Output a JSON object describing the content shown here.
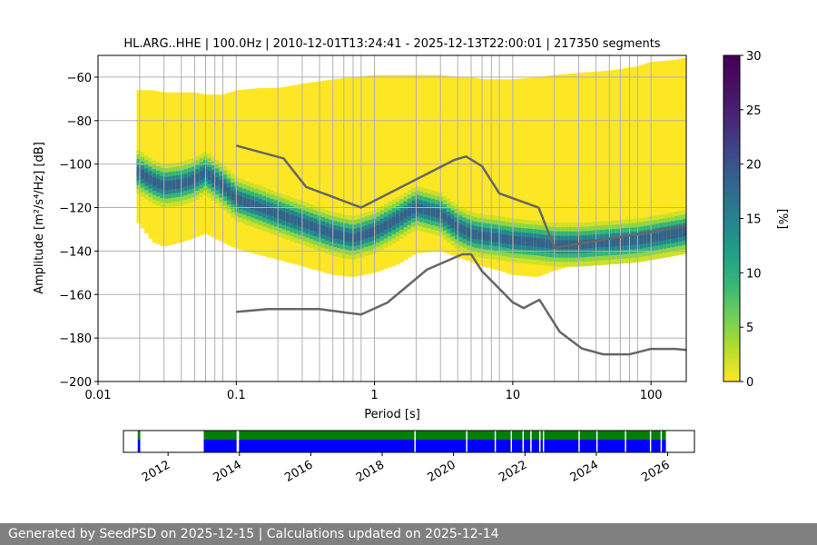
{
  "chart_data": [
    {
      "type": "heatmap",
      "title": "HL.ARG..HHE | 100.0Hz | 2010-12-01T13:24:41 - 2025-12-13T22:00:01 | 217350 segments",
      "xlabel": "Period [s]",
      "ylabel": "Amplitude [m²/s⁴/Hz] [dB]",
      "x_scale": "log",
      "xlim": [
        0.01,
        180
      ],
      "ylim": [
        -200,
        -50
      ],
      "x_tick_labels": [
        "0.01",
        "0.1",
        "1",
        "10",
        "100"
      ],
      "y_tick_labels": [
        "−60",
        "−80",
        "−100",
        "−120",
        "−140",
        "−160",
        "−180",
        "−200"
      ],
      "y_ticks": [
        -60,
        -80,
        -100,
        -120,
        -140,
        -160,
        -180,
        -200
      ],
      "grid": true,
      "colormap": "viridis_r",
      "colorbar": {
        "label": "[%]",
        "range": [
          0,
          30
        ],
        "ticks": [
          "0",
          "5",
          "10",
          "15",
          "20",
          "25",
          "30"
        ]
      },
      "psd_mode": {
        "period": [
          0.019,
          0.025,
          0.03,
          0.04,
          0.05,
          0.06,
          0.08,
          0.1,
          0.15,
          0.2,
          0.3,
          0.5,
          0.7,
          1.0,
          1.5,
          2.0,
          3.0,
          4.0,
          5.0,
          6.0,
          8.0,
          10,
          15,
          20,
          30,
          50,
          80,
          100,
          150,
          180
        ],
        "amplitude": [
          -103,
          -108,
          -110,
          -109,
          -107,
          -104,
          -110,
          -116,
          -120,
          -123,
          -127,
          -132,
          -134,
          -131,
          -125,
          -120,
          -123,
          -129,
          -132,
          -133,
          -134,
          -135,
          -136,
          -137,
          -137,
          -136,
          -135,
          -134,
          -132,
          -131
        ]
      },
      "psd_lower": [
        -126,
        -136,
        -138,
        -136,
        -134,
        -132,
        -136,
        -139,
        -142,
        -144,
        -147,
        -151,
        -152,
        -150,
        -146,
        -141,
        -140,
        -143,
        -145,
        -147,
        -149,
        -151,
        -152,
        -149,
        -146,
        -144,
        -143,
        -142,
        -141,
        -140
      ],
      "psd_upper": [
        -66,
        -66,
        -67,
        -67,
        -67,
        -68,
        -68,
        -66,
        -65,
        -65,
        -63,
        -61,
        -60,
        -59,
        -59,
        -59,
        -59,
        -60,
        -60,
        -61,
        -61,
        -61,
        -60,
        -59,
        -58,
        -57,
        -55,
        -53,
        -52,
        -51
      ],
      "series": [
        {
          "name": "",
          "x": [
            0.1,
            0.22,
            0.32,
            0.8,
            3.8,
            4.6,
            6.0,
            8.0,
            15.4,
            20.0,
            180
          ],
          "y": [
            -91.5,
            -97.4,
            -110.5,
            -120.0,
            -98.0,
            -96.5,
            -101.0,
            -113.5,
            -120.0,
            -138.5,
            -128.5
          ]
        },
        {
          "name": "",
          "x": [
            0.1,
            0.17,
            0.4,
            0.8,
            1.24,
            2.4,
            4.3,
            5.0,
            6.0,
            10.0,
            12.0,
            15.6,
            21.9,
            31.6,
            45.0,
            70.0,
            100,
            150,
            180
          ],
          "y": [
            -168.0,
            -166.7,
            -166.7,
            -169.2,
            -163.7,
            -148.5,
            -141.5,
            -141.5,
            -149.3,
            -163.6,
            -166.2,
            -162.4,
            -177.2,
            -184.8,
            -187.5,
            -187.5,
            -185.0,
            -185.0,
            -185.5
          ]
        }
      ],
      "vertical_lines_period": [
        0.02,
        0.03,
        0.04,
        0.05,
        0.06,
        0.07,
        0.08,
        0.2,
        0.3,
        0.4,
        0.5,
        0.6,
        0.7,
        0.8,
        2,
        3,
        4,
        5,
        6,
        7,
        8,
        20,
        30,
        40,
        50,
        60,
        70,
        80
      ]
    },
    {
      "type": "timeline",
      "x_tick_labels": [
        "2012",
        "2014",
        "2016",
        "2018",
        "2020",
        "2022",
        "2024",
        "2026"
      ],
      "x_ticks": [
        2012,
        2014,
        2016,
        2018,
        2020,
        2022,
        2024,
        2026
      ],
      "xlim": [
        2010.75,
        2026.75
      ],
      "colors": {
        "data_available": "#0000ff",
        "processed": "#008000",
        "gap": "#ffffff"
      },
      "available_ranges": [
        [
          2011.15,
          2011.22
        ],
        [
          2013.0,
          2025.95
        ]
      ],
      "processed_ranges": [
        [
          2011.15,
          2011.22
        ],
        [
          2013.0,
          2025.95
        ]
      ],
      "gaps": [
        2013.92,
        2013.95,
        2018.9,
        2020.35,
        2021.15,
        2021.6,
        2021.93,
        2022.15,
        2022.4,
        2022.5,
        2023.5,
        2024.0,
        2024.8,
        2025.5,
        2025.8
      ]
    }
  ],
  "footer": {
    "text": "Generated by SeedPSD on 2025-12-15 | Calculations updated on 2025-12-14"
  },
  "colors": {
    "curve": "#666666",
    "grid": "#b0b0b0"
  }
}
